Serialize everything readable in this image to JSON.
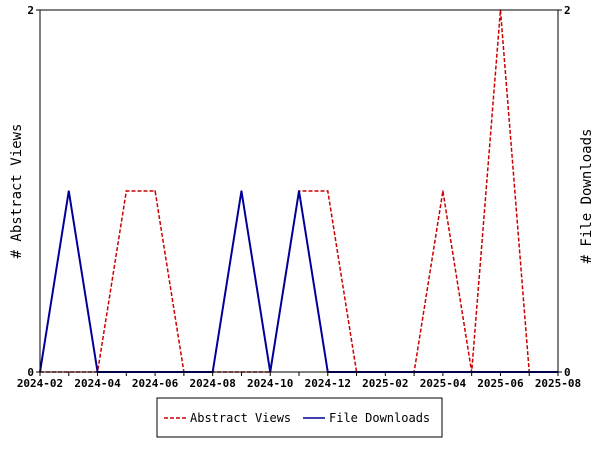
{
  "chart_data": {
    "type": "line",
    "x": [
      "2024-02",
      "2024-03",
      "2024-04",
      "2024-05",
      "2024-06",
      "2024-07",
      "2024-08",
      "2024-09",
      "2024-10",
      "2024-11",
      "2024-12",
      "2025-01",
      "2025-02",
      "2025-03",
      "2025-04",
      "2025-05",
      "2025-06",
      "2025-07",
      "2025-08"
    ],
    "xtick_labels": [
      "2024-02",
      "2024-04",
      "2024-06",
      "2024-08",
      "2024-10",
      "2024-12",
      "2025-02",
      "2025-04",
      "2025-06",
      "2025-08"
    ],
    "series": [
      {
        "name": "Abstract Views",
        "axis": "left",
        "color": "#cc0000",
        "style": "dashed",
        "values": [
          0,
          0,
          0,
          1,
          1,
          0,
          0,
          0,
          0,
          1,
          1,
          0,
          0,
          0,
          1,
          0,
          2,
          0,
          0
        ]
      },
      {
        "name": "File Downloads",
        "axis": "right",
        "color": "#000099",
        "style": "solid",
        "values": [
          0,
          1,
          0,
          0,
          0,
          0,
          0,
          1,
          0,
          1,
          0,
          0,
          0,
          0,
          0,
          0,
          0,
          0,
          0
        ]
      }
    ],
    "ylabel_left": "# Abstract Views",
    "ylabel_right": "# File Downloads",
    "ylim_left": [
      0,
      2
    ],
    "ylim_right": [
      0,
      2
    ],
    "yticks_left": [
      "0",
      "2"
    ],
    "yticks_right": [
      "0",
      "2"
    ],
    "grid": false,
    "legend_position": "bottom"
  }
}
